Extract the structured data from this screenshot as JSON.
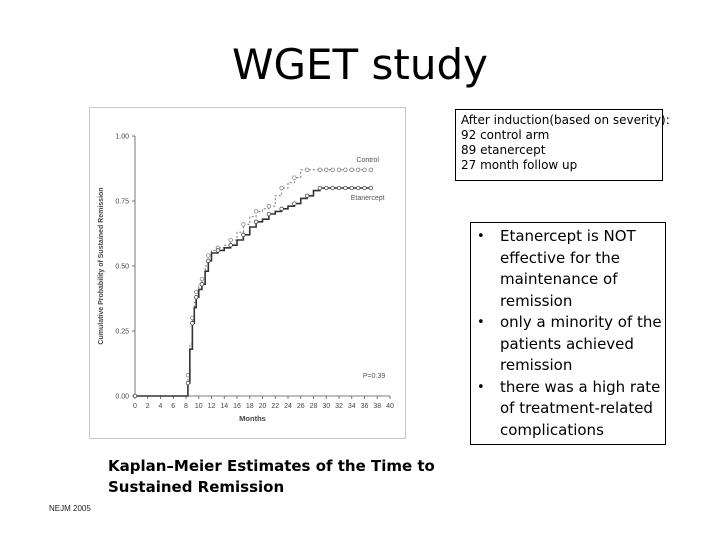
{
  "slide": {
    "title": "WGET study",
    "info": [
      "After induction(based on severity):",
      "92 control arm",
      "89 etanercept",
      "27 month follow up"
    ],
    "bullets": [
      "Etanercept is NOT effective for the maintenance of remission",
      "only a minority of the patients achieved remission",
      "there was a high rate of treatment-related complications"
    ],
    "caption_line1": "Kaplan–Meier Estimates of the Time to",
    "caption_line2": "Sustained Remission",
    "source": "NEJM 2005"
  },
  "chart_data": {
    "type": "line",
    "title": "",
    "xlabel": "Months",
    "ylabel": "Cumulative Probability of Sustained Remission",
    "xlim": [
      0,
      40
    ],
    "ylim": [
      0,
      1
    ],
    "x_ticks": [
      "0",
      "2",
      "4",
      "6",
      "8",
      "10",
      "12",
      "14",
      "16",
      "18",
      "20",
      "22",
      "24",
      "26",
      "28",
      "30",
      "32",
      "34",
      "36",
      "38",
      "40"
    ],
    "y_ticks": [
      "0.00",
      "0.25",
      "0.50",
      "0.75",
      "1.00"
    ],
    "annotation": "P=0.39",
    "series": [
      {
        "name": "Control",
        "style": "dashed",
        "x": [
          0,
          8,
          8.3,
          8.6,
          9,
          9.3,
          9.6,
          10,
          10.5,
          11,
          11.5,
          12,
          13,
          14,
          15,
          16,
          17,
          18,
          19,
          20,
          21,
          22,
          23,
          24,
          25,
          26,
          27,
          28,
          29,
          30,
          31,
          32,
          33,
          34,
          35,
          36,
          37
        ],
        "y": [
          0,
          0,
          0.08,
          0.2,
          0.3,
          0.36,
          0.4,
          0.43,
          0.45,
          0.5,
          0.54,
          0.56,
          0.57,
          0.58,
          0.6,
          0.63,
          0.66,
          0.69,
          0.71,
          0.72,
          0.73,
          0.77,
          0.8,
          0.82,
          0.84,
          0.87,
          0.87,
          0.87,
          0.87,
          0.87,
          0.87,
          0.87,
          0.87,
          0.87,
          0.87,
          0.87,
          0.87
        ]
      },
      {
        "name": "Etanercept",
        "style": "solid",
        "x": [
          0,
          8,
          8.3,
          8.6,
          9,
          9.3,
          9.6,
          10,
          10.5,
          11,
          11.5,
          12,
          13,
          14,
          15,
          16,
          17,
          18,
          19,
          20,
          21,
          22,
          23,
          24,
          25,
          26,
          27,
          28,
          29,
          30,
          31,
          32,
          33,
          34,
          35,
          36,
          37
        ],
        "y": [
          0,
          0,
          0.05,
          0.18,
          0.28,
          0.34,
          0.38,
          0.41,
          0.43,
          0.48,
          0.52,
          0.55,
          0.56,
          0.57,
          0.58,
          0.6,
          0.62,
          0.65,
          0.67,
          0.68,
          0.7,
          0.71,
          0.72,
          0.73,
          0.74,
          0.76,
          0.77,
          0.79,
          0.8,
          0.8,
          0.8,
          0.8,
          0.8,
          0.8,
          0.8,
          0.8,
          0.8
        ]
      }
    ]
  }
}
